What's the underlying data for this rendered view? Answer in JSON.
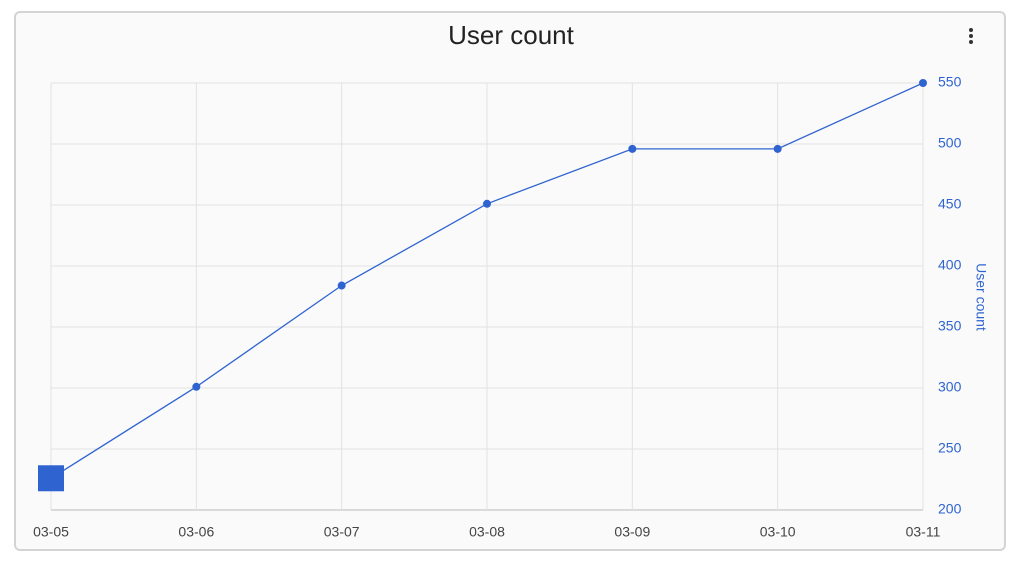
{
  "chart_data": {
    "type": "line",
    "title": "User count",
    "categories": [
      "03-05",
      "03-06",
      "03-07",
      "03-08",
      "03-09",
      "03-10",
      "03-11"
    ],
    "series": [
      {
        "name": "User count",
        "color": "#2f64d0",
        "axis": "y2",
        "values": [
          226,
          301,
          384,
          451,
          496,
          496,
          550
        ]
      }
    ],
    "y2label": "User count",
    "y2lim": [
      200,
      550
    ],
    "y2ticks": [
      200,
      250,
      300,
      350,
      400,
      450,
      500,
      550
    ],
    "grid": true
  }
}
